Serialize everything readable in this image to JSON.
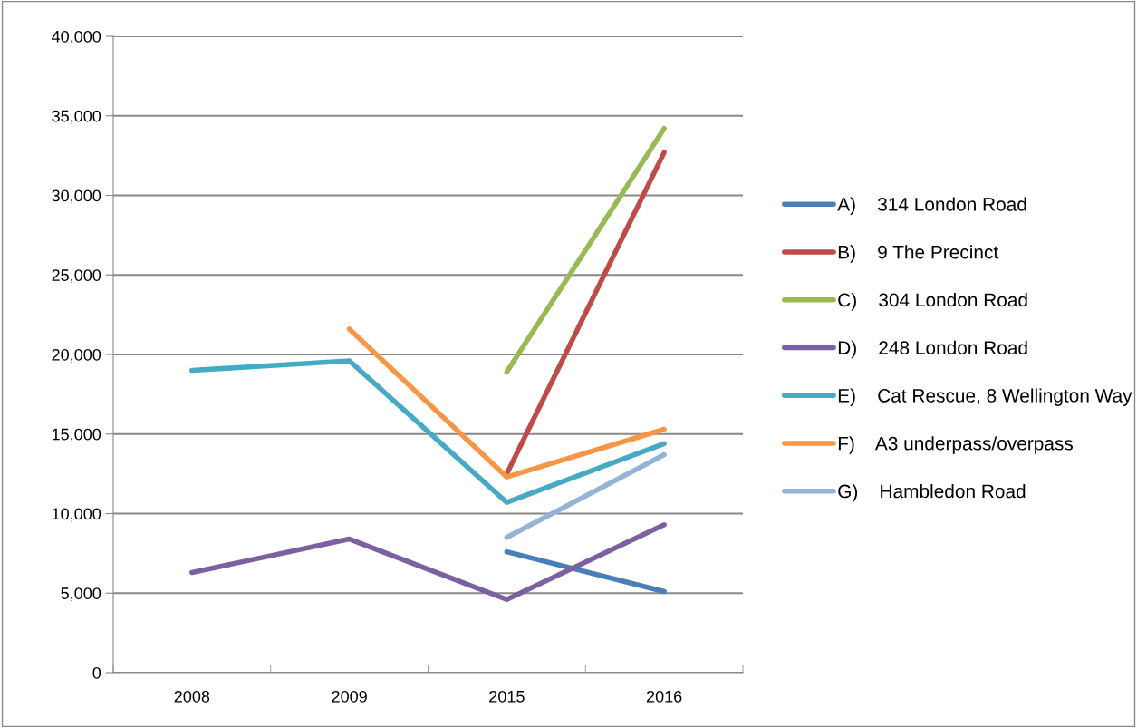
{
  "chart_data": {
    "type": "line",
    "categories": [
      "2008",
      "2009",
      "2015",
      "2016"
    ],
    "series": [
      {
        "name": "A)    314 London Road",
        "color": "#4a7ebb",
        "values": [
          null,
          null,
          7600,
          5100
        ]
      },
      {
        "name": "B)    9 The Precinct",
        "color": "#be4b48",
        "values": [
          null,
          null,
          12500,
          32700
        ]
      },
      {
        "name": "C)    304 London Road",
        "color": "#98b954",
        "values": [
          null,
          null,
          18900,
          34200
        ]
      },
      {
        "name": "D)    248 London Road",
        "color": "#7d60a0",
        "values": [
          6300,
          8400,
          4600,
          9300
        ]
      },
      {
        "name": "E)    Cat Rescue, 8 Wellington Way",
        "color": "#46aac5",
        "values": [
          19000,
          19600,
          10700,
          14400
        ]
      },
      {
        "name": "F)    A3 underpass/overpass",
        "color": "#f79646",
        "values": [
          null,
          21600,
          12300,
          15300
        ]
      },
      {
        "name": "G)    Hambledon Road",
        "color": "#95b3d7",
        "values": [
          null,
          null,
          8500,
          13700
        ]
      }
    ],
    "ylim": [
      0,
      40000
    ],
    "yticks": [
      {
        "value": 0,
        "label": "0"
      },
      {
        "value": 5000,
        "label": "5,000"
      },
      {
        "value": 10000,
        "label": "10,000"
      },
      {
        "value": 15000,
        "label": "15,000"
      },
      {
        "value": 20000,
        "label": "20,000"
      },
      {
        "value": 25000,
        "label": "25,000"
      },
      {
        "value": 30000,
        "label": "30,000"
      },
      {
        "value": 35000,
        "label": "35,000"
      },
      {
        "value": 40000,
        "label": "40,000"
      }
    ],
    "grid": "y",
    "legend": "right",
    "marker": "none",
    "line_style": "solid"
  }
}
